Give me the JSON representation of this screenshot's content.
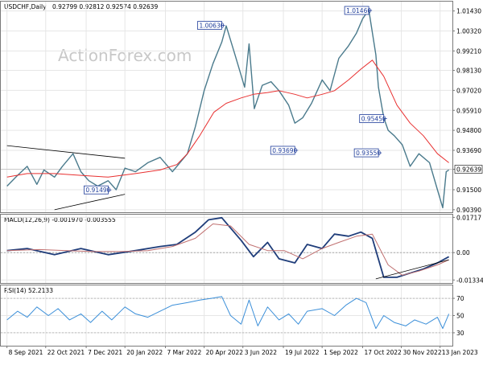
{
  "chart_data": [
    {
      "type": "line",
      "panel": "price",
      "header": "USDCHF,Daily",
      "ohlc_label": "0.92799 0.92812 0.92574 0.92639",
      "current_price": 0.92639,
      "current_price_label": "0.92639",
      "ylim": [
        0.9025,
        1.0195
      ],
      "y_ticks": [
        "1.01430",
        "1.00320",
        "0.99210",
        "0.98130",
        "0.97020",
        "0.95910",
        "0.94800",
        "0.93690",
        "0.92639",
        "0.91500",
        "0.90390"
      ],
      "y_tick_values": [
        1.0143,
        1.0032,
        0.9921,
        0.9813,
        0.9702,
        0.9591,
        0.948,
        0.9369,
        0.92639,
        0.915,
        0.9039
      ],
      "watermark": "ActionForex.com",
      "series": [
        {
          "name": "price",
          "color": "#4a7a8c",
          "x": [
            "2021-09-08",
            "2021-09-20",
            "2021-10-01",
            "2021-10-12",
            "2021-10-20",
            "2021-11-01",
            "2021-11-10",
            "2021-11-22",
            "2021-12-01",
            "2021-12-10",
            "2021-12-20",
            "2022-01-01",
            "2022-01-10",
            "2022-01-20",
            "2022-02-01",
            "2022-02-15",
            "2022-03-01",
            "2022-03-15",
            "2022-04-01",
            "2022-04-10",
            "2022-04-20",
            "2022-04-30",
            "2022-05-10",
            "2022-05-15",
            "2022-05-25",
            "2022-06-05",
            "2022-06-10",
            "2022-06-16",
            "2022-06-25",
            "2022-07-05",
            "2022-07-14",
            "2022-07-25",
            "2022-08-01",
            "2022-08-10",
            "2022-08-20",
            "2022-09-01",
            "2022-09-10",
            "2022-09-20",
            "2022-10-01",
            "2022-10-10",
            "2022-10-17",
            "2022-10-24",
            "2022-11-01",
            "2022-11-04",
            "2022-11-10",
            "2022-11-15",
            "2022-11-22",
            "2022-12-01",
            "2022-12-10",
            "2022-12-20",
            "2023-01-01",
            "2023-01-10",
            "2023-01-16",
            "2023-01-20",
            "2023-01-23"
          ],
          "y": [
            0.917,
            0.923,
            0.928,
            0.918,
            0.926,
            0.922,
            0.928,
            0.935,
            0.925,
            0.92,
            0.917,
            0.92,
            0.915,
            0.927,
            0.925,
            0.93,
            0.933,
            0.925,
            0.935,
            0.95,
            0.97,
            0.985,
            0.997,
            1.006,
            0.99,
            0.972,
            0.996,
            0.96,
            0.973,
            0.975,
            0.97,
            0.962,
            0.952,
            0.955,
            0.963,
            0.976,
            0.97,
            0.988,
            0.995,
            1.002,
            1.01,
            1.015,
            0.99,
            0.972,
            0.955,
            0.948,
            0.945,
            0.94,
            0.928,
            0.935,
            0.93,
            0.915,
            0.905,
            0.925,
            0.926
          ]
        },
        {
          "name": "moving average",
          "color": "#e83030",
          "x": [
            "2021-09-08",
            "2021-10-01",
            "2021-11-01",
            "2021-12-01",
            "2022-01-01",
            "2022-02-01",
            "2022-03-01",
            "2022-03-20",
            "2022-04-01",
            "2022-04-15",
            "2022-05-01",
            "2022-05-15",
            "2022-06-01",
            "2022-06-15",
            "2022-07-01",
            "2022-07-14",
            "2022-08-01",
            "2022-08-15",
            "2022-09-01",
            "2022-09-15",
            "2022-10-01",
            "2022-10-15",
            "2022-10-28",
            "2022-11-10",
            "2022-11-25",
            "2022-12-10",
            "2022-12-25",
            "2023-01-10",
            "2023-01-23"
          ],
          "y": [
            0.922,
            0.924,
            0.924,
            0.923,
            0.922,
            0.924,
            0.926,
            0.929,
            0.935,
            0.945,
            0.958,
            0.963,
            0.966,
            0.968,
            0.969,
            0.97,
            0.968,
            0.966,
            0.968,
            0.97,
            0.976,
            0.982,
            0.987,
            0.978,
            0.962,
            0.952,
            0.945,
            0.935,
            0.93
          ]
        }
      ],
      "annotations": [
        {
          "label": "1.00630",
          "x": "2022-05-10",
          "y": 1.0063
        },
        {
          "label": "1.01460",
          "x": "2022-10-24",
          "y": 1.0146
        },
        {
          "label": "0.93690",
          "x": "2022-08-01",
          "y": 0.9369
        },
        {
          "label": "0.95450",
          "x": "2022-11-10",
          "y": 0.9545
        },
        {
          "label": "0.93550",
          "x": "2022-11-04",
          "y": 0.9355
        },
        {
          "label": "0.91490",
          "x": "2022-01-01",
          "y": 0.9149
        }
      ],
      "trend_lines": [
        {
          "x": [
            "2021-09-08",
            "2022-01-20"
          ],
          "y": [
            0.9395,
            0.9325
          ]
        },
        {
          "x": [
            "2021-11-01",
            "2022-01-20"
          ],
          "y": [
            0.9039,
            0.9125
          ]
        }
      ]
    },
    {
      "type": "line",
      "panel": "macd",
      "header": "MACD(12,26,9) -0.001970 -0.003555",
      "ylim": [
        -0.0148,
        0.0185
      ],
      "y_ticks": [
        "0.01717",
        "0.00",
        "-0.01334"
      ],
      "y_tick_values": [
        0.01717,
        0.0,
        -0.01334
      ],
      "series": [
        {
          "name": "macd",
          "color": "#1f3d7a",
          "x": [
            "2021-09-08",
            "2021-10-01",
            "2021-11-01",
            "2021-12-01",
            "2022-01-01",
            "2022-02-01",
            "2022-03-01",
            "2022-03-20",
            "2022-04-10",
            "2022-04-25",
            "2022-05-10",
            "2022-06-01",
            "2022-06-15",
            "2022-07-01",
            "2022-07-14",
            "2022-08-01",
            "2022-08-15",
            "2022-09-01",
            "2022-09-15",
            "2022-10-01",
            "2022-10-15",
            "2022-10-28",
            "2022-11-10",
            "2022-11-25",
            "2022-12-10",
            "2022-12-25",
            "2023-01-10",
            "2023-01-23"
          ],
          "y": [
            0.001,
            0.002,
            -0.001,
            0.002,
            -0.001,
            0.001,
            0.003,
            0.004,
            0.01,
            0.016,
            0.017,
            0.006,
            -0.002,
            0.005,
            -0.003,
            -0.005,
            0.004,
            0.002,
            0.009,
            0.008,
            0.01,
            0.007,
            -0.012,
            -0.012,
            -0.01,
            -0.008,
            -0.005,
            -0.002
          ]
        },
        {
          "name": "signal",
          "color": "#c07070",
          "x": [
            "2021-09-08",
            "2021-10-15",
            "2021-11-15",
            "2021-12-15",
            "2022-01-15",
            "2022-02-15",
            "2022-03-15",
            "2022-04-10",
            "2022-04-30",
            "2022-05-20",
            "2022-06-10",
            "2022-07-01",
            "2022-07-20",
            "2022-08-10",
            "2022-09-01",
            "2022-09-20",
            "2022-10-10",
            "2022-10-28",
            "2022-11-15",
            "2022-12-01",
            "2022-12-20",
            "2023-01-10",
            "2023-01-23"
          ],
          "y": [
            0.001,
            0.0015,
            0.001,
            0.0005,
            0.0005,
            0.001,
            0.003,
            0.007,
            0.014,
            0.013,
            0.004,
            0.001,
            0.001,
            -0.003,
            0.002,
            0.005,
            0.008,
            0.009,
            -0.006,
            -0.011,
            -0.009,
            -0.006,
            -0.0035
          ]
        }
      ],
      "trend_lines": [
        {
          "x": [
            "2022-11-01",
            "2023-01-23"
          ],
          "y": [
            -0.0128,
            -0.0035
          ]
        }
      ]
    },
    {
      "type": "line",
      "panel": "rsi",
      "header": "RSI(14) 52.2133",
      "ylim": [
        15,
        85
      ],
      "y_ticks": [
        "70",
        "50",
        "30"
      ],
      "y_tick_values": [
        70,
        50,
        30
      ],
      "series": [
        {
          "name": "rsi",
          "color": "#3b8fd9",
          "x": [
            "2021-09-08",
            "2021-09-20",
            "2021-10-01",
            "2021-10-12",
            "2021-10-25",
            "2021-11-05",
            "2021-11-18",
            "2021-12-01",
            "2021-12-12",
            "2021-12-25",
            "2022-01-05",
            "2022-01-20",
            "2022-02-01",
            "2022-02-15",
            "2022-03-01",
            "2022-03-15",
            "2022-04-01",
            "2022-04-15",
            "2022-04-28",
            "2022-05-10",
            "2022-05-20",
            "2022-06-01",
            "2022-06-10",
            "2022-06-20",
            "2022-07-01",
            "2022-07-14",
            "2022-07-25",
            "2022-08-05",
            "2022-08-15",
            "2022-09-01",
            "2022-09-15",
            "2022-09-28",
            "2022-10-10",
            "2022-10-21",
            "2022-11-01",
            "2022-11-10",
            "2022-11-22",
            "2022-12-05",
            "2022-12-15",
            "2022-12-28",
            "2023-01-10",
            "2023-01-16",
            "2023-01-23"
          ],
          "y": [
            45,
            55,
            48,
            60,
            50,
            58,
            45,
            52,
            42,
            55,
            45,
            60,
            52,
            48,
            55,
            62,
            65,
            68,
            70,
            72,
            50,
            40,
            68,
            38,
            60,
            45,
            52,
            40,
            55,
            58,
            50,
            62,
            70,
            65,
            35,
            50,
            42,
            38,
            45,
            40,
            48,
            35,
            52
          ]
        }
      ]
    }
  ],
  "x_axis": {
    "labels": [
      "8 Sep 2021",
      "22 Oct 2021",
      "7 Dec 2021",
      "20 Jan 2022",
      "7 Mar 2022",
      "20 Apr 2022",
      "3 Jun 2022",
      "19 Jul 2022",
      "1 Sep 2022",
      "17 Oct 2022",
      "30 Nov 2022",
      "13 Jan 2023"
    ],
    "dates": [
      "2021-09-08",
      "2021-10-22",
      "2021-12-07",
      "2022-01-20",
      "2022-03-07",
      "2022-04-20",
      "2022-06-03",
      "2022-07-19",
      "2022-09-01",
      "2022-10-17",
      "2022-11-30",
      "2023-01-13"
    ],
    "range": [
      "2021-09-01",
      "2023-01-27"
    ]
  },
  "colors": {
    "background": "#ffffff",
    "frame": "#7a7a7a",
    "grid": "#e6e6e6",
    "annotation_border": "#1f3d9a",
    "annotation_text": "#1f3d9a",
    "price": "#4a7a8c",
    "ma": "#e83030",
    "watermark": "#c8c8c8"
  }
}
